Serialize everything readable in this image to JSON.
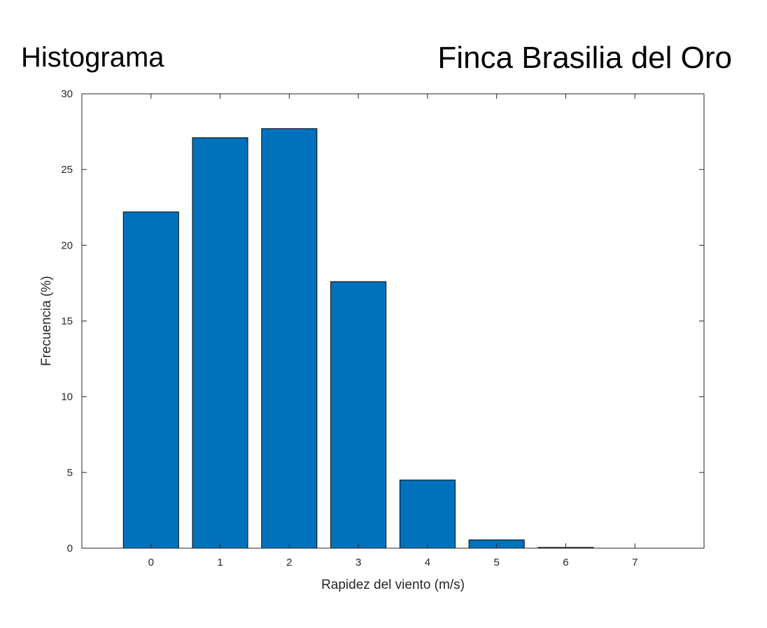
{
  "headings": {
    "left": "Histograma",
    "right": "Finca Brasilia del Oro"
  },
  "chart_data": {
    "type": "bar",
    "categories": [
      "0",
      "1",
      "2",
      "3",
      "4",
      "5",
      "6",
      "7"
    ],
    "x": [
      0,
      1,
      2,
      3,
      4,
      5,
      6,
      7
    ],
    "values": [
      22.2,
      27.1,
      27.7,
      17.6,
      4.5,
      0.55,
      0.05,
      0
    ],
    "xlabel": "Rapidez del viento (m/s)",
    "ylabel": "Frecuencia (%)",
    "xlim": [
      -1,
      8
    ],
    "ylim": [
      0,
      30
    ],
    "yticks": [
      0,
      5,
      10,
      15,
      20,
      25,
      30
    ],
    "grid": false,
    "bar_color": "#0072BD",
    "bar_edge_color": "#000000"
  }
}
